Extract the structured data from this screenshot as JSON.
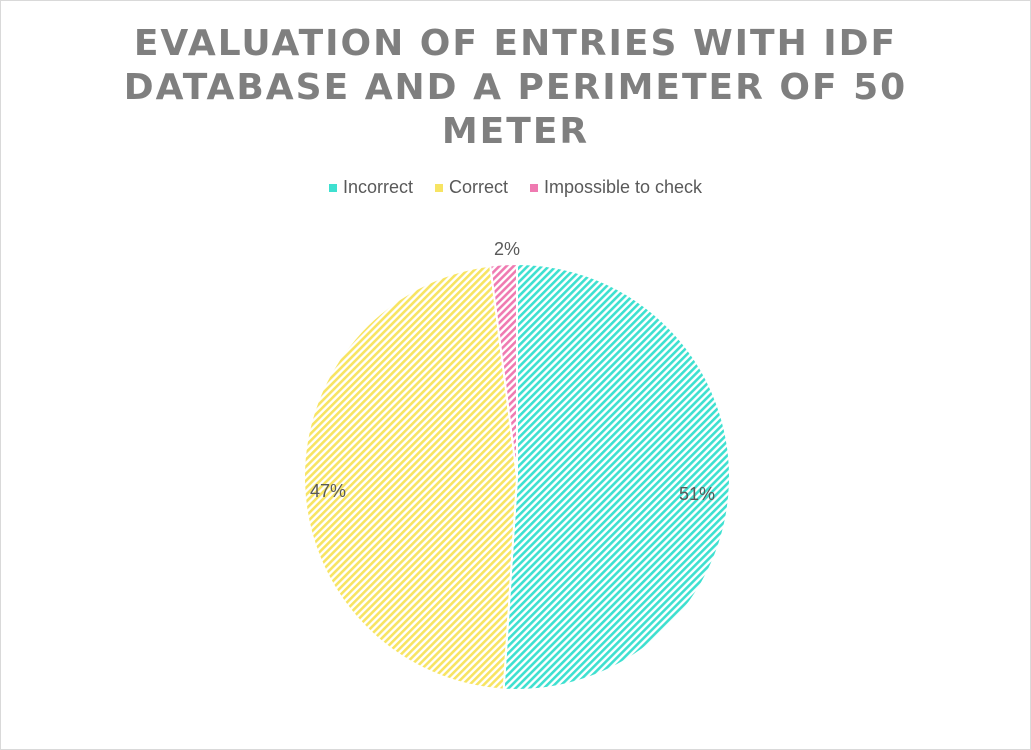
{
  "chart_data": {
    "type": "pie",
    "title": "EVALUATION OF ENTRIES WITH IDF DATABASE AND A PERIMETER OF 50 METER",
    "title_lines": [
      "EVALUATION OF ENTRIES WITH IDF",
      "DATABASE AND A PERIMETER OF 50",
      "METER"
    ],
    "legend_position": "top",
    "slices": [
      {
        "name": "Incorrect",
        "value": 51,
        "label": "51%",
        "color": "#3ee0d0"
      },
      {
        "name": "Correct",
        "value": 47,
        "label": "47%",
        "color": "#f7e463"
      },
      {
        "name": "Impossible to check",
        "value": 2,
        "label": "2%",
        "color": "#ef7ab1"
      }
    ]
  }
}
